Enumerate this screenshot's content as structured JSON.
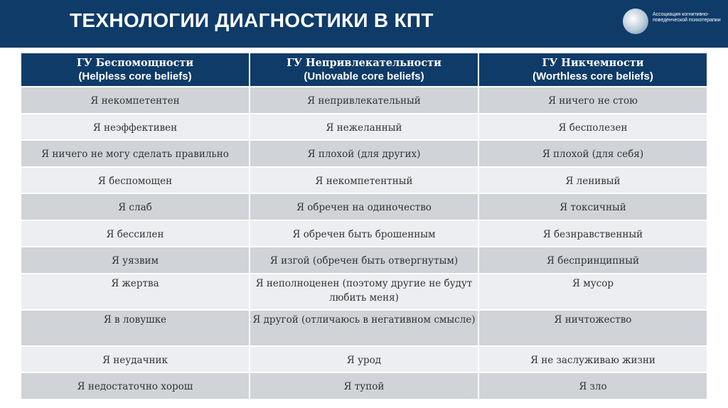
{
  "header": {
    "title": "ТЕХНОЛОГИИ ДИАГНОСТИКИ В КПТ",
    "logo_text": "Ассоциация когнитивно-поведенческой психотерапии"
  },
  "table": {
    "columns": [
      {
        "ru": "ГУ Беспомощности",
        "en": "(Helpless core beliefs)"
      },
      {
        "ru": "ГУ Непривлекательности",
        "en": "(Unlovable core beliefs)"
      },
      {
        "ru": "ГУ Никчемности",
        "en": "(Worthless core beliefs)"
      }
    ],
    "rows": [
      [
        "Я некомпетентен",
        "Я непривлекательный",
        "Я ничего не стою"
      ],
      [
        "Я неэффективен",
        "Я нежеланный",
        "Я бесполезен"
      ],
      [
        "Я ничего не могу сделать правильно",
        "Я плохой (для других)",
        "Я плохой (для себя)"
      ],
      [
        "Я беспомощен",
        "Я некомпетентный",
        "Я ленивый"
      ],
      [
        "Я слаб",
        "Я обречен на одиночество",
        "Я токсичный"
      ],
      [
        "Я бессилен",
        "Я обречен быть брошенным",
        "Я безнравственный"
      ],
      [
        "Я уязвим",
        "Я изгой (обречен быть отвергнутым)",
        "Я беспринципный"
      ],
      [
        "Я жертва",
        "Я неполноценен (поэтому другие не будут любить меня)",
        "Я мусор"
      ],
      [
        "Я в ловушке",
        "Я другой (отличаюсь в негативном смысле)",
        "Я ничтожество"
      ],
      [
        "Я неудачник",
        "Я урод",
        "Я не заслуживаю жизни"
      ],
      [
        "Я недостаточно хорош",
        "Я тупой",
        "Я зло"
      ]
    ]
  }
}
